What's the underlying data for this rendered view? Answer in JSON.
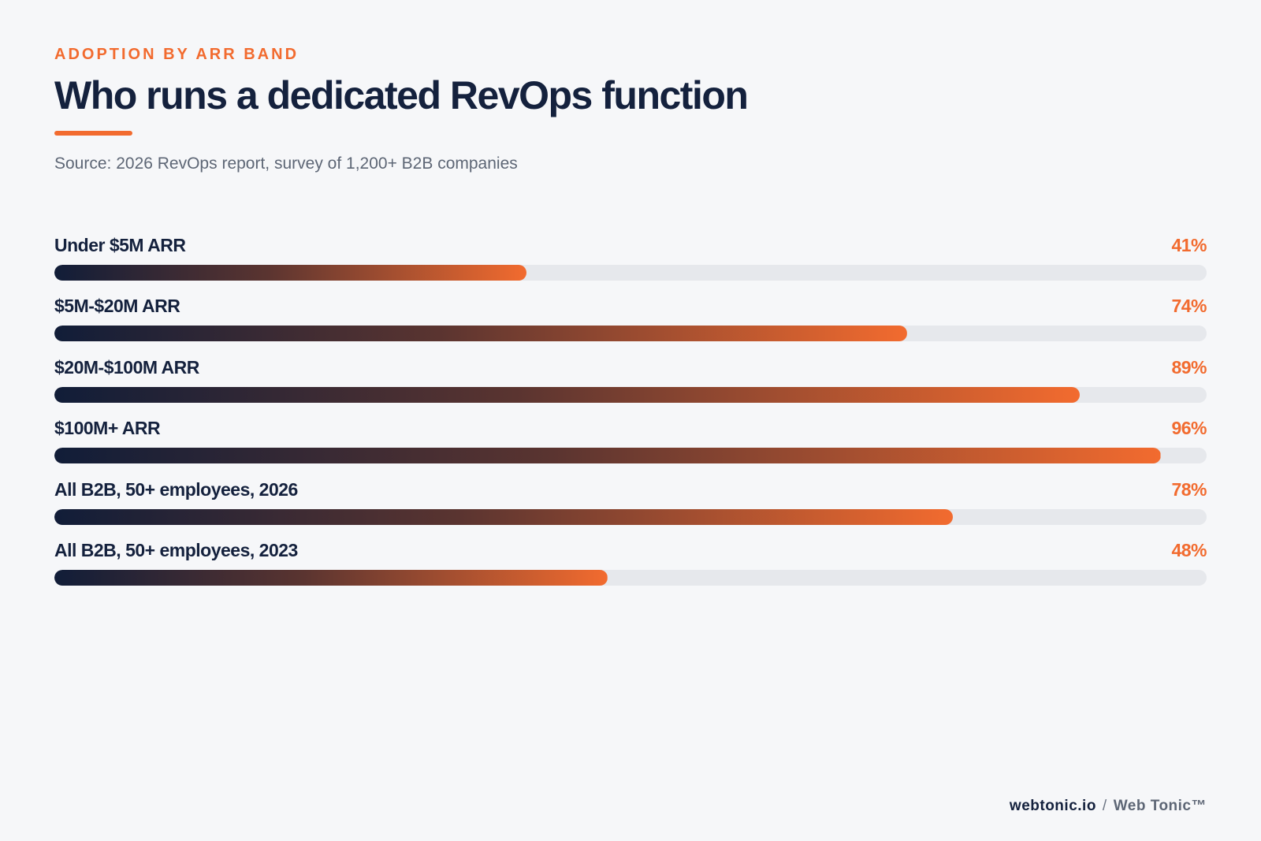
{
  "header": {
    "eyebrow": "ADOPTION BY ARR BAND",
    "title": "Who runs a dedicated RevOps function",
    "subtitle": "Source: 2026 RevOps report, survey of 1,200+ B2B companies"
  },
  "colors": {
    "accent": "#f26b2f",
    "navy": "#14213d",
    "track": "#e6e8ec",
    "background": "#f6f7f9"
  },
  "chart_data": {
    "type": "bar",
    "orientation": "horizontal",
    "categories": [
      "Under $5M ARR",
      "$5M-$20M ARR",
      "$20M-$100M ARR",
      "$100M+ ARR",
      "All B2B, 50+ employees, 2026",
      "All B2B, 50+ employees, 2023"
    ],
    "values": [
      41,
      74,
      89,
      96,
      78,
      48
    ],
    "value_labels": [
      "41%",
      "74%",
      "89%",
      "96%",
      "78%",
      "48%"
    ],
    "xlim": [
      0,
      100
    ],
    "grid": false
  },
  "footer": {
    "domain": "webtonic.io",
    "separator": "/",
    "brand": "Web Tonic™"
  }
}
